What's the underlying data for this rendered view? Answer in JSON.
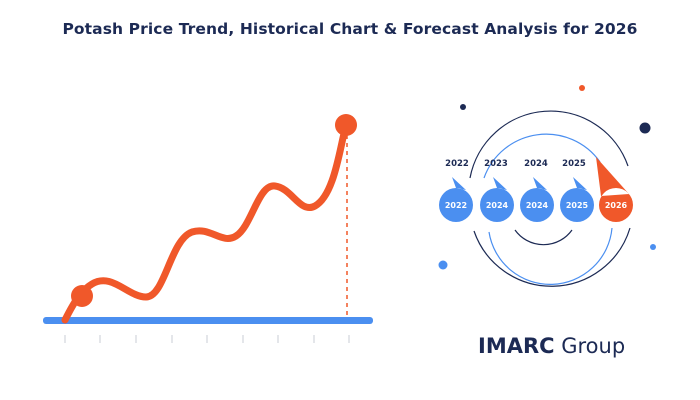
{
  "title": "Potash Price Trend, Historical Chart & Forecast Analysis for 2026",
  "colors": {
    "navy": "#1c2a54",
    "blue": "#4b8ff0",
    "orange": "#f0582a"
  },
  "timeline": {
    "years_above": [
      "2022",
      "2023",
      "2024",
      "2025"
    ],
    "bubbles": [
      "2022",
      "2024",
      "2024",
      "2025",
      "2026"
    ]
  },
  "brand": {
    "part1": "IMARC",
    "part2": "Group"
  }
}
